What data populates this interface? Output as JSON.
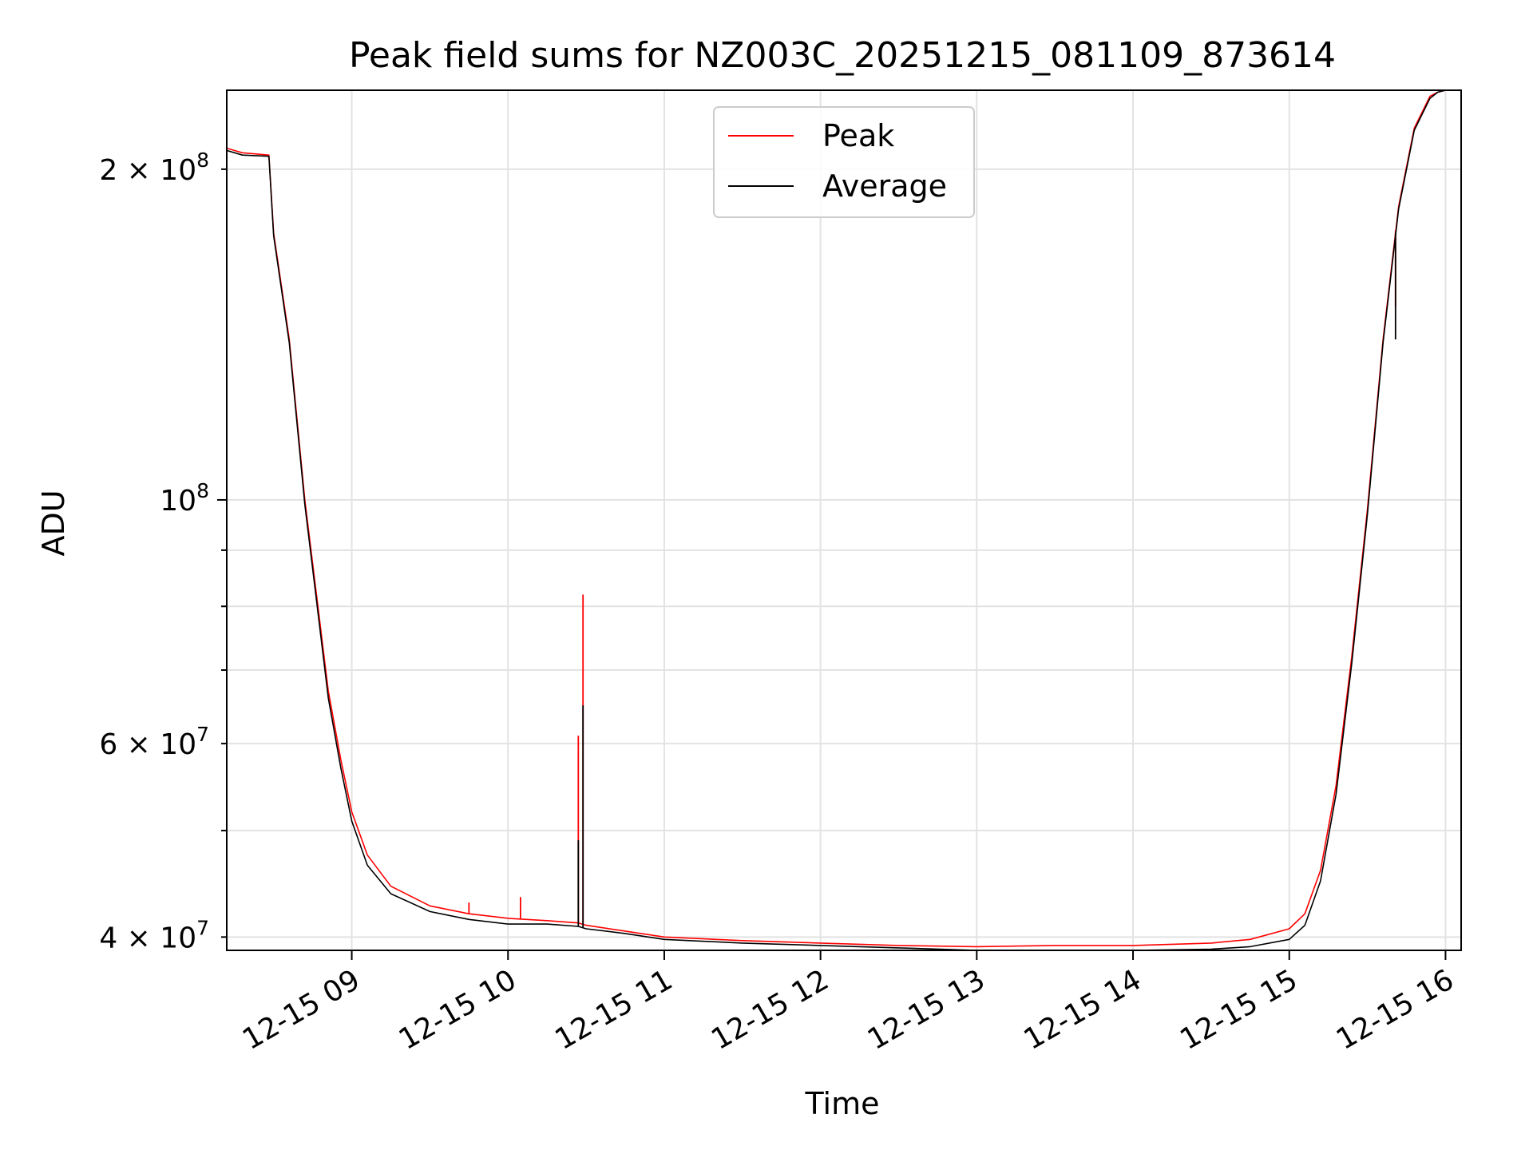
{
  "chart_data": {
    "type": "line",
    "title": "Peak field sums for NZ003C_20251215_081109_873614",
    "xlabel": "Time",
    "ylabel": "ADU",
    "yscale": "log",
    "grid": true,
    "legend_location": "upper center",
    "x_unit": "hours since 12-15 00:00",
    "xlim": [
      8.2,
      16.1
    ],
    "ylim": [
      38900000,
      236000000
    ],
    "x_ticks": [
      {
        "value": 9,
        "label": "12-15 09"
      },
      {
        "value": 10,
        "label": "12-15 10"
      },
      {
        "value": 11,
        "label": "12-15 11"
      },
      {
        "value": 12,
        "label": "12-15 12"
      },
      {
        "value": 13,
        "label": "12-15 13"
      },
      {
        "value": 14,
        "label": "12-15 14"
      },
      {
        "value": 15,
        "label": "12-15 15"
      },
      {
        "value": 16,
        "label": "12-15 16"
      }
    ],
    "y_ticks_major": [
      {
        "value": 100000000,
        "base": "10",
        "exp": "8"
      }
    ],
    "y_ticks_minor": [
      {
        "value": 40000000,
        "mant": "4",
        "exp": "7"
      },
      {
        "value": 60000000,
        "mant": "6",
        "exp": "7"
      },
      {
        "value": 200000000,
        "mant": "2",
        "exp": "8"
      }
    ],
    "y_ticks_minor_unlabeled": [
      50000000,
      70000000,
      80000000,
      90000000
    ],
    "series": [
      {
        "name": "Peak",
        "color": "#ff0000",
        "x": [
          8.2,
          8.3,
          8.47,
          8.5,
          8.6,
          8.7,
          8.77,
          8.85,
          8.93,
          9.0,
          9.1,
          9.25,
          9.5,
          9.75,
          10.0,
          10.25,
          10.45,
          10.5,
          10.75,
          11.0,
          11.5,
          12.0,
          12.5,
          13.0,
          13.5,
          14.0,
          14.5,
          14.75,
          15.0,
          15.1,
          15.2,
          15.3,
          15.4,
          15.5,
          15.6,
          15.7,
          15.8,
          15.9,
          15.95,
          16.0,
          16.1
        ],
        "values": [
          209000000,
          207000000,
          206000000,
          175000000,
          140000000,
          100000000,
          83000000,
          67000000,
          58000000,
          52000000,
          47500000,
          44500000,
          42700000,
          42000000,
          41600000,
          41400000,
          41200000,
          41000000,
          40500000,
          40000000,
          39700000,
          39500000,
          39300000,
          39200000,
          39300000,
          39300000,
          39500000,
          39800000,
          40700000,
          42000000,
          46000000,
          55000000,
          72000000,
          98000000,
          140000000,
          185000000,
          218000000,
          233000000,
          235000000,
          236000000,
          236000000
        ],
        "spikes": [
          {
            "x": 9.75,
            "value": 43000000
          },
          {
            "x": 10.08,
            "value": 43500000
          },
          {
            "x": 10.45,
            "value": 61000000
          },
          {
            "x": 10.48,
            "value": 82000000
          },
          {
            "x": 15.68,
            "value": 150000000
          }
        ]
      },
      {
        "name": "Average",
        "color": "#000000",
        "x": [
          8.2,
          8.3,
          8.47,
          8.5,
          8.6,
          8.7,
          8.77,
          8.85,
          8.93,
          9.0,
          9.1,
          9.25,
          9.5,
          9.75,
          10.0,
          10.25,
          10.45,
          10.5,
          10.75,
          11.0,
          11.5,
          12.0,
          12.5,
          13.0,
          13.5,
          14.0,
          14.5,
          14.75,
          15.0,
          15.1,
          15.2,
          15.3,
          15.4,
          15.5,
          15.6,
          15.7,
          15.8,
          15.9,
          15.95,
          16.0,
          16.1
        ],
        "values": [
          208000000,
          206000000,
          205500000,
          174000000,
          139000000,
          99000000,
          82000000,
          66000000,
          57000000,
          51000000,
          46500000,
          43800000,
          42200000,
          41500000,
          41100000,
          41100000,
          40900000,
          40700000,
          40300000,
          39800000,
          39500000,
          39300000,
          39100000,
          38900000,
          38900000,
          38900000,
          39000000,
          39200000,
          39800000,
          41000000,
          45000000,
          54000000,
          71000000,
          97000000,
          139000000,
          184000000,
          217000000,
          232000000,
          235000000,
          236000000,
          236000000
        ],
        "spikes": [
          {
            "x": 10.45,
            "value": 49000000
          },
          {
            "x": 10.48,
            "value": 65000000
          },
          {
            "x": 15.68,
            "value": 140000000
          }
        ]
      }
    ]
  }
}
